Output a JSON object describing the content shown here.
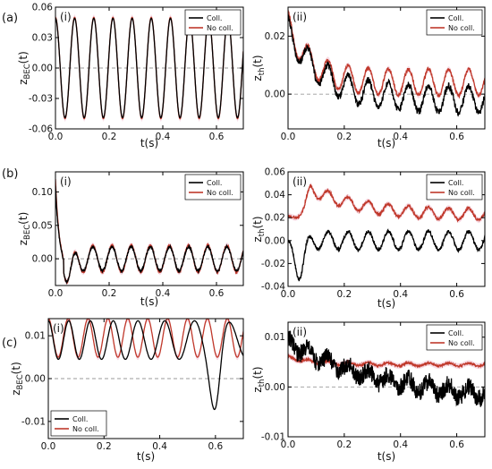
{
  "figure": {
    "row_labels": [
      "(a)",
      "(b)",
      "(c)"
    ],
    "colors": {
      "coll": "#000000",
      "nocoll": "#c0392b",
      "band": "#f7d7e3",
      "zero": "#9a9a9a"
    }
  },
  "chart_data": [
    {
      "type": "line",
      "panel": "a-i",
      "tag": "(i)",
      "xlabel": "t(s)",
      "ylabel_main": "z",
      "ylabel_sub": "BEC",
      "ylabel_suffix": "(t)",
      "xlim": [
        0,
        0.7
      ],
      "ylim": [
        -0.06,
        0.06
      ],
      "xticks": [
        0.0,
        0.2,
        0.4,
        0.6
      ],
      "xtick_labels": [
        "0.0",
        "0.2",
        "0.4",
        "0.6"
      ],
      "yticks": [
        -0.06,
        -0.03,
        0.0,
        0.03,
        0.06
      ],
      "ytick_labels": [
        "-0.06",
        "-0.03",
        "0.00",
        "0.03",
        "0.06"
      ],
      "legend": [
        "Coll.",
        "No coll."
      ],
      "legend_position": "top-right",
      "zero_line": true,
      "series": [
        {
          "name": "Coll.",
          "model": {
            "kind": "damped_cos",
            "offset": 0.0,
            "amp": 0.049,
            "period": 0.0714,
            "phase": 0.0,
            "tau": 0,
            "noise": 0
          }
        },
        {
          "name": "No coll.",
          "model": {
            "kind": "damped_cos",
            "offset": 0.0,
            "amp": 0.05,
            "period": 0.0714,
            "phase": 0.0,
            "tau": 0,
            "noise": 0
          }
        }
      ]
    },
    {
      "type": "line",
      "panel": "a-ii",
      "tag": "(ii)",
      "xlabel": "t(s)",
      "ylabel_main": "z",
      "ylabel_sub": "th",
      "ylabel_suffix": "(t)",
      "xlim": [
        0,
        0.7
      ],
      "ylim": [
        -0.012,
        0.03
      ],
      "xticks": [
        0.0,
        0.2,
        0.4,
        0.6
      ],
      "xtick_labels": [
        "0.0",
        "0.2",
        "0.4",
        "0.6"
      ],
      "yticks": [
        0.0,
        0.02
      ],
      "ytick_labels": [
        "0.00",
        "0.02"
      ],
      "legend": [
        "Coll.",
        "No coll."
      ],
      "legend_position": "top-right",
      "zero_line": true,
      "series": [
        {
          "name": "Coll.",
          "model": {
            "kind": "decay_osc",
            "start": 0.022,
            "end": -0.002,
            "tau": 0.12,
            "amp": 0.0045,
            "period": 0.0714,
            "noise": 0.0012
          }
        },
        {
          "name": "No coll.",
          "model": {
            "kind": "decay_osc",
            "start": 0.024,
            "end": 0.004,
            "tau": 0.08,
            "amp": 0.0045,
            "period": 0.0714,
            "noise": 0.0006
          }
        }
      ]
    },
    {
      "type": "line",
      "panel": "b-i",
      "tag": "(i)",
      "xlabel": "t(s)",
      "ylabel_main": "z",
      "ylabel_sub": "BEC",
      "ylabel_suffix": "(t)",
      "xlim": [
        0,
        0.7
      ],
      "ylim": [
        -0.04,
        0.13
      ],
      "xticks": [
        0.0,
        0.2,
        0.4,
        0.6
      ],
      "xtick_labels": [
        "0.0",
        "0.2",
        "0.4",
        "0.6"
      ],
      "yticks": [
        0.0,
        0.05,
        0.1
      ],
      "ytick_labels": [
        "0.00",
        "0.05",
        "0.10"
      ],
      "legend": [
        "Coll.",
        "No coll."
      ],
      "legend_position": "top-right",
      "zero_line": true,
      "series": [
        {
          "name": "Coll.",
          "model": {
            "kind": "kick_osc",
            "peak": 0.11,
            "settle": -0.03,
            "offset": 0.0,
            "amp": 0.018,
            "period": 0.0714,
            "noise": 0.002
          }
        },
        {
          "name": "No coll.",
          "model": {
            "kind": "kick_osc",
            "peak": 0.12,
            "settle": -0.03,
            "offset": 0.0,
            "amp": 0.02,
            "period": 0.0714,
            "noise": 0.0015
          }
        }
      ]
    },
    {
      "type": "line",
      "panel": "b-ii",
      "tag": "(ii)",
      "xlabel": "t(s)",
      "ylabel_main": "z",
      "ylabel_sub": "th",
      "ylabel_suffix": "(t)",
      "xlim": [
        0,
        0.7
      ],
      "ylim": [
        -0.04,
        0.06
      ],
      "xticks": [
        0.0,
        0.2,
        0.4,
        0.6
      ],
      "xtick_labels": [
        "0.0",
        "0.2",
        "0.4",
        "0.6"
      ],
      "yticks": [
        -0.04,
        -0.02,
        0.0,
        0.02,
        0.04,
        0.06
      ],
      "ytick_labels": [
        "-0.04",
        "-0.02",
        "0.00",
        "0.02",
        "0.04",
        "0.06"
      ],
      "legend": [
        "Coll.",
        "No coll."
      ],
      "legend_position": "top-right",
      "zero_line": false,
      "series": [
        {
          "name": "Coll.",
          "model": {
            "kind": "dip_osc",
            "dip": -0.03,
            "dip_t": 0.04,
            "offset": 0.0,
            "amp": 0.008,
            "period": 0.0714,
            "noise": 0.0015
          }
        },
        {
          "name": "No coll.",
          "model": {
            "kind": "rise_osc",
            "start": 0.02,
            "peak": 0.045,
            "peak_t": 0.08,
            "end": 0.022,
            "amp": 0.005,
            "period": 0.0714,
            "noise": 0.0012
          }
        }
      ]
    },
    {
      "type": "line",
      "panel": "c-i",
      "tag": "(i)",
      "xlabel": "t(s)",
      "ylabel_main": "z",
      "ylabel_sub": "BEC",
      "ylabel_suffix": "(t)",
      "xlim": [
        0,
        0.7
      ],
      "ylim": [
        -0.014,
        0.014
      ],
      "xticks": [
        0.0,
        0.2,
        0.4,
        0.6
      ],
      "xtick_labels": [
        "0.0",
        "0.2",
        "0.4",
        "0.6"
      ],
      "yticks": [
        -0.01,
        0.0,
        0.01
      ],
      "ytick_labels": [
        "-0.01",
        "0.00",
        "0.01"
      ],
      "legend": [
        "Coll.",
        "No coll."
      ],
      "legend_position": "bottom-left",
      "zero_line": true,
      "series": [
        {
          "name": "Coll.",
          "model": {
            "kind": "chirp_drop",
            "offset": 0.009,
            "amp": 0.0045,
            "period": 0.0714,
            "chirp": 0.35,
            "drop_t": 0.6,
            "drop": -0.013,
            "noise": 0
          }
        },
        {
          "name": "No coll.",
          "model": {
            "kind": "damped_cos",
            "offset": 0.0095,
            "amp": 0.0045,
            "period": 0.0714,
            "phase": 0.0,
            "tau": 0,
            "noise": 0
          }
        }
      ]
    },
    {
      "type": "line",
      "panel": "c-ii",
      "tag": "(ii)",
      "xlabel": "t(s)",
      "ylabel_main": "z",
      "ylabel_sub": "th",
      "ylabel_suffix": "(t)",
      "xlim": [
        0,
        0.7
      ],
      "ylim": [
        -0.01,
        0.013
      ],
      "xticks": [
        0.0,
        0.2,
        0.4,
        0.6
      ],
      "xtick_labels": [
        "0.0",
        "0.2",
        "0.4",
        "0.6"
      ],
      "yticks": [
        -0.01,
        0.0,
        0.01
      ],
      "ytick_labels": [
        "-0.01",
        "0.00",
        "0.01"
      ],
      "legend": [
        "Coll.",
        "No coll."
      ],
      "legend_position": "top-right",
      "zero_line": true,
      "series": [
        {
          "name": "Coll.",
          "model": {
            "kind": "decay_osc",
            "start": 0.009,
            "end": -0.003,
            "tau": 0.35,
            "amp": 0.0012,
            "period": 0.0714,
            "noise": 0.0018
          }
        },
        {
          "name": "No coll.",
          "model": {
            "kind": "decay_osc",
            "start": 0.006,
            "end": 0.0045,
            "tau": 0.1,
            "amp": 0.0003,
            "period": 0.0714,
            "noise": 0.0002
          }
        }
      ]
    }
  ]
}
